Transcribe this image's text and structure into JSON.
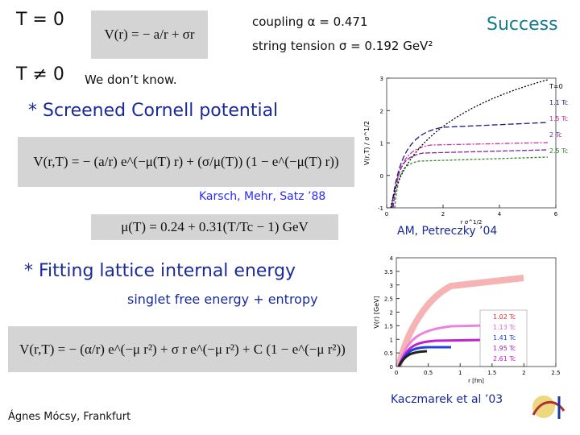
{
  "header": {
    "t_zero": "T = 0",
    "t_nonzero": "T ≠ 0",
    "unknown": "We don’t know.",
    "success": "Success"
  },
  "params": {
    "coupling": "coupling α = 0.471",
    "tension": "string tension σ = 0.192 GeV²"
  },
  "formulas": {
    "cornell": "V(r) = − a/r + σr",
    "screened": "V(r,T) = − (a/r) e^(−μ(T) r) + (σ/μ(T)) (1 − e^(−μ(T) r))",
    "mu": "μ(T) = 0.24 + 0.31(T/Tc − 1) GeV",
    "fit": "V(r,T) = − (α/r) e^(−μ r²) + σ r e^(−μ r²) + C (1 − e^(−μ r²))"
  },
  "sections": {
    "screened_title": "* Screened Cornell potential",
    "screened_ref": "Karsch, Mehr, Satz ’88",
    "plot_ref": "AM, Petreczky ’04",
    "fit_title": "* Fitting lattice internal energy",
    "fit_subtitle": "singlet free energy + entropy",
    "fit_ref": "Kaczmarek et al ’03"
  },
  "footer": {
    "author": "Ágnes Mócsy, Frankfurt"
  },
  "figure1": {
    "y_label": "V(r,T) / σ^1/2",
    "x_label": "r σ^1/2",
    "yticks": [
      "-1",
      "0",
      "1",
      "2",
      "3"
    ],
    "xticks": [
      "0",
      "2",
      "4",
      "6"
    ],
    "legend": [
      "T=0",
      "1.1 Tc",
      "1.5 Tc",
      "2 Tc",
      "2.5 Tc"
    ]
  },
  "figure2": {
    "y_label": "V(r) [GeV]",
    "x_label": "r [fm]",
    "yticks": [
      "0",
      "0.5",
      "1",
      "1.5",
      "2",
      "2.5",
      "3",
      "3.5",
      "4"
    ],
    "xticks": [
      "0",
      "0.5",
      "1",
      "1.5",
      "2",
      "2.5"
    ],
    "legend": [
      "1.02 Tc",
      "1.13 Tc",
      "1.41 Tc",
      "1.95 Tc",
      "2.61 Tc"
    ]
  }
}
